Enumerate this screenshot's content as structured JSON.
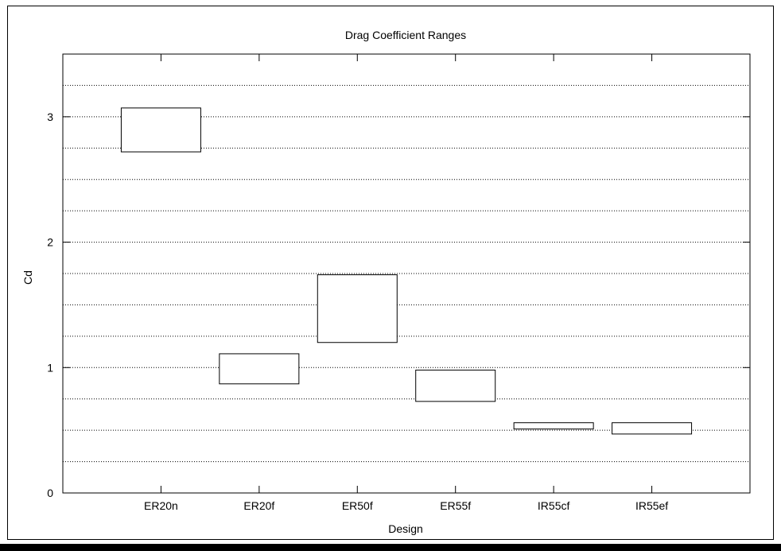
{
  "chart_data": {
    "type": "box",
    "title": "Drag Coefficient Ranges",
    "xlabel": "Design",
    "ylabel": "Cd",
    "categories": [
      "ER20n",
      "ER20f",
      "ER50f",
      "ER55f",
      "IR55cf",
      "IR55ef"
    ],
    "ranges": [
      {
        "low": 2.72,
        "high": 3.07
      },
      {
        "low": 0.87,
        "high": 1.11
      },
      {
        "low": 1.2,
        "high": 1.74
      },
      {
        "low": 0.73,
        "high": 0.98
      },
      {
        "low": 0.51,
        "high": 0.56
      },
      {
        "low": 0.47,
        "high": 0.56
      }
    ],
    "ylim": [
      0,
      3.5
    ],
    "yticks": [
      0,
      1,
      2,
      3
    ],
    "ytick_labels": [
      "0",
      "1",
      "2",
      "3"
    ],
    "gridlines_y": [
      0.25,
      0.5,
      0.75,
      1,
      1.25,
      1.5,
      1.75,
      2,
      2.25,
      2.5,
      2.75,
      3,
      3.25
    ],
    "grid": "horizontal-dotted",
    "legend": "none"
  }
}
